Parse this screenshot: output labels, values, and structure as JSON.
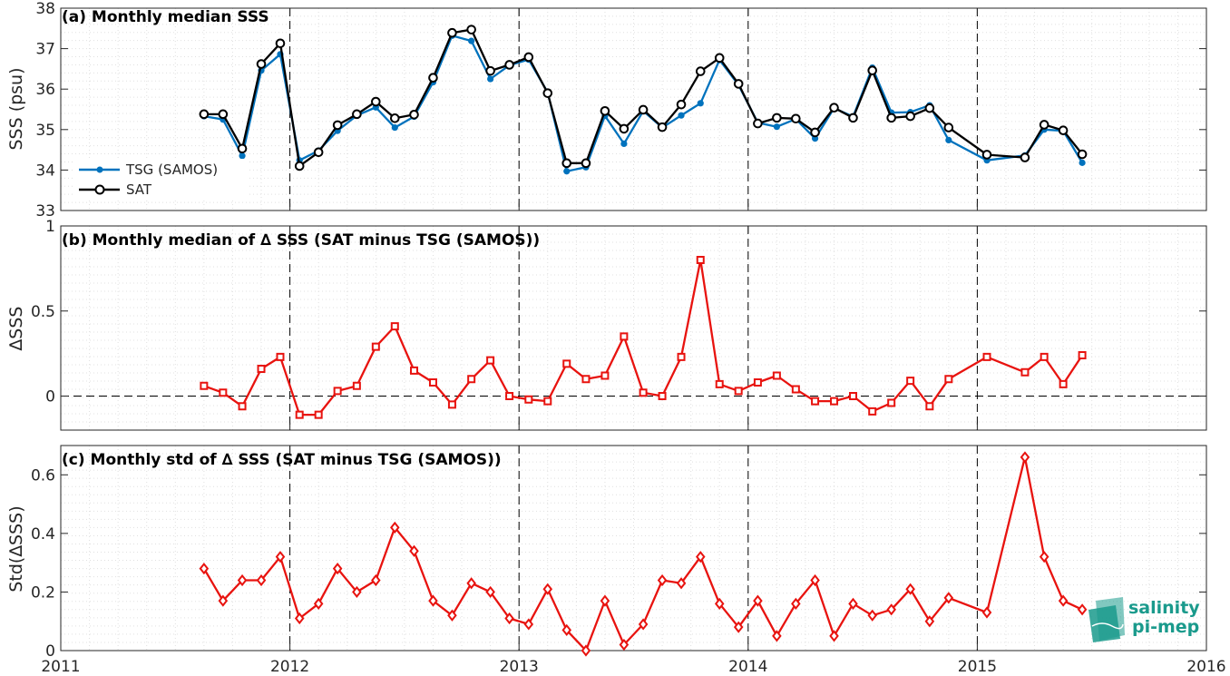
{
  "colors": {
    "tsg": "#0072BD",
    "sat": "#000000",
    "delta": "#E8130F",
    "logo": "#1a9a8c"
  },
  "logo": {
    "line1": "salinity",
    "line2": "pi-mep"
  },
  "x_axis": {
    "range": [
      2011,
      2016
    ],
    "ticks": [
      2011,
      2012,
      2013,
      2014,
      2015,
      2016
    ],
    "tick_labels": [
      "2011",
      "2012",
      "2013",
      "2014",
      "2015",
      "2016"
    ]
  },
  "chart_data": [
    {
      "type": "line",
      "title": "(a) Monthly median SSS",
      "ylabel": "SSS (psu)",
      "ylim": [
        33,
        38
      ],
      "yticks": [
        33,
        34,
        35,
        36,
        37,
        38
      ],
      "ytick_labels": [
        "33",
        "34",
        "35",
        "36",
        "37",
        "38"
      ],
      "grid": true,
      "legend_position": "bottom-left",
      "series": [
        {
          "name": "TSG (SAMOS)",
          "marker": "filled-dot",
          "x": [
            2011.625,
            2011.708,
            2011.792,
            2011.875,
            2011.958,
            2012.042,
            2012.125,
            2012.208,
            2012.292,
            2012.375,
            2012.458,
            2012.542,
            2012.625,
            2012.708,
            2012.792,
            2012.875,
            2012.958,
            2013.042,
            2013.125,
            2013.208,
            2013.292,
            2013.375,
            2013.458,
            2013.542,
            2013.625,
            2013.708,
            2013.792,
            2013.875,
            2013.958,
            2014.042,
            2014.125,
            2014.208,
            2014.292,
            2014.375,
            2014.458,
            2014.542,
            2014.625,
            2014.708,
            2014.792,
            2014.875,
            2015.042,
            2015.208,
            2015.292,
            2015.375,
            2015.458
          ],
          "y": [
            35.33,
            35.25,
            34.35,
            36.46,
            36.86,
            34.24,
            34.48,
            34.97,
            35.35,
            35.55,
            35.05,
            35.32,
            36.17,
            37.32,
            37.19,
            36.25,
            36.59,
            36.73,
            35.92,
            33.97,
            34.07,
            35.34,
            34.65,
            35.46,
            35.05,
            35.35,
            35.65,
            36.72,
            36.1,
            35.17,
            35.07,
            35.26,
            34.78,
            35.53,
            35.32,
            36.53,
            35.42,
            35.43,
            35.6,
            34.74,
            34.24,
            34.36,
            35.0,
            34.97,
            34.18
          ]
        },
        {
          "name": "SAT",
          "marker": "open-circle",
          "x": [
            2011.625,
            2011.708,
            2011.792,
            2011.875,
            2011.958,
            2012.042,
            2012.125,
            2012.208,
            2012.292,
            2012.375,
            2012.458,
            2012.542,
            2012.625,
            2012.708,
            2012.792,
            2012.875,
            2012.958,
            2013.042,
            2013.125,
            2013.208,
            2013.292,
            2013.375,
            2013.458,
            2013.542,
            2013.625,
            2013.708,
            2013.792,
            2013.875,
            2013.958,
            2014.042,
            2014.125,
            2014.208,
            2014.292,
            2014.375,
            2014.458,
            2014.542,
            2014.625,
            2014.708,
            2014.792,
            2014.875,
            2015.042,
            2015.208,
            2015.292,
            2015.375,
            2015.458
          ],
          "y": [
            35.38,
            35.38,
            34.53,
            36.62,
            37.13,
            34.1,
            34.44,
            35.11,
            35.38,
            35.69,
            35.28,
            35.37,
            36.28,
            37.39,
            37.47,
            36.45,
            36.6,
            36.79,
            35.9,
            34.17,
            34.17,
            35.46,
            35.02,
            35.49,
            35.06,
            35.62,
            36.44,
            36.77,
            36.13,
            35.15,
            35.29,
            35.27,
            34.93,
            35.54,
            35.29,
            36.46,
            35.29,
            35.33,
            35.53,
            35.05,
            34.38,
            34.31,
            35.12,
            34.98,
            34.39
          ]
        }
      ]
    },
    {
      "type": "line",
      "title": "(b) Monthly median of ∆ SSS (SAT minus TSG (SAMOS))",
      "ylabel": "∆SSS",
      "ylim": [
        -0.2,
        1
      ],
      "yticks": [
        0,
        0.5,
        1
      ],
      "ytick_labels": [
        "0",
        "0.5",
        "1"
      ],
      "grid": true,
      "zero_line": true,
      "series": [
        {
          "name": "",
          "marker": "open-square",
          "x": [
            2011.625,
            2011.708,
            2011.792,
            2011.875,
            2011.958,
            2012.042,
            2012.125,
            2012.208,
            2012.292,
            2012.375,
            2012.458,
            2012.542,
            2012.625,
            2012.708,
            2012.792,
            2012.875,
            2012.958,
            2013.042,
            2013.125,
            2013.208,
            2013.292,
            2013.375,
            2013.458,
            2013.542,
            2013.625,
            2013.708,
            2013.792,
            2013.875,
            2013.958,
            2014.042,
            2014.125,
            2014.208,
            2014.292,
            2014.375,
            2014.458,
            2014.542,
            2014.625,
            2014.708,
            2014.792,
            2014.875,
            2015.042,
            2015.208,
            2015.292,
            2015.375,
            2015.458
          ],
          "y": [
            0.06,
            0.02,
            -0.06,
            0.16,
            0.23,
            -0.11,
            -0.11,
            0.03,
            0.06,
            0.29,
            0.41,
            0.15,
            0.08,
            -0.05,
            0.1,
            0.21,
            0.0,
            -0.02,
            -0.03,
            0.19,
            0.1,
            0.12,
            0.35,
            0.02,
            0.0,
            0.23,
            0.8,
            0.07,
            0.03,
            0.08,
            0.12,
            0.04,
            -0.03,
            -0.03,
            0.0,
            -0.09,
            -0.04,
            0.09,
            -0.06,
            0.1,
            0.23,
            0.14,
            0.23,
            0.07,
            0.24
          ]
        }
      ]
    },
    {
      "type": "line",
      "title": "(c) Monthly std of ∆ SSS (SAT minus TSG (SAMOS))",
      "ylabel": "Std(∆SSS)",
      "ylim": [
        0,
        0.7
      ],
      "yticks": [
        0,
        0.2,
        0.4,
        0.6
      ],
      "ytick_labels": [
        "0",
        "0.2",
        "0.4",
        "0.6"
      ],
      "grid": true,
      "series": [
        {
          "name": "",
          "marker": "open-diamond",
          "x": [
            2011.625,
            2011.708,
            2011.792,
            2011.875,
            2011.958,
            2012.042,
            2012.125,
            2012.208,
            2012.292,
            2012.375,
            2012.458,
            2012.542,
            2012.625,
            2012.708,
            2012.792,
            2012.875,
            2012.958,
            2013.042,
            2013.125,
            2013.208,
            2013.292,
            2013.375,
            2013.458,
            2013.542,
            2013.625,
            2013.708,
            2013.792,
            2013.875,
            2013.958,
            2014.042,
            2014.125,
            2014.208,
            2014.292,
            2014.375,
            2014.458,
            2014.542,
            2014.625,
            2014.708,
            2014.792,
            2014.875,
            2015.042,
            2015.208,
            2015.292,
            2015.375,
            2015.458
          ],
          "y": [
            0.28,
            0.17,
            0.24,
            0.24,
            0.32,
            0.11,
            0.16,
            0.28,
            0.2,
            0.24,
            0.42,
            0.34,
            0.17,
            0.12,
            0.23,
            0.2,
            0.11,
            0.09,
            0.21,
            0.07,
            0.0,
            0.17,
            0.02,
            0.09,
            0.24,
            0.23,
            0.32,
            0.16,
            0.08,
            0.17,
            0.05,
            0.16,
            0.24,
            0.05,
            0.16,
            0.12,
            0.14,
            0.21,
            0.1,
            0.18,
            0.13,
            0.66,
            0.32,
            0.17,
            0.14
          ]
        }
      ]
    }
  ]
}
